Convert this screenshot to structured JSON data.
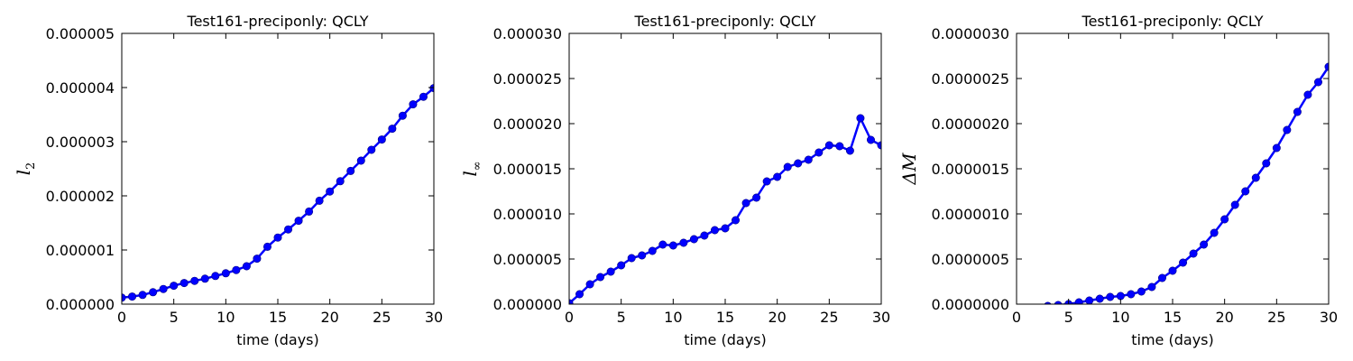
{
  "chart_data": [
    {
      "type": "line",
      "title": "Test161-preciponly: QCLY",
      "xlabel": "time (days)",
      "ylabel": "l",
      "ylabel_subscript": "2",
      "xlim": [
        0,
        30
      ],
      "ylim": [
        0,
        5e-06
      ],
      "xticks": [
        0,
        5,
        10,
        15,
        20,
        25,
        30
      ],
      "yticks": [
        0,
        1e-06,
        2e-06,
        3e-06,
        4e-06,
        5e-06
      ],
      "xtick_labels": [
        "0",
        "5",
        "10",
        "15",
        "20",
        "25",
        "30"
      ],
      "ytick_labels": [
        "0.000000",
        "0.000001",
        "0.000002",
        "0.000003",
        "0.000004",
        "0.000005"
      ],
      "grid": false,
      "color": "#0000ff",
      "series": [
        {
          "x": [
            0,
            1,
            2,
            3,
            4,
            5,
            6,
            7,
            8,
            9,
            10,
            11,
            12,
            13,
            14,
            15,
            16,
            17,
            18,
            19,
            20,
            21,
            22,
            23,
            24,
            25,
            26,
            27,
            28,
            29,
            30
          ],
          "values": [
            1.2e-07,
            1.4e-07,
            1.7e-07,
            2.2e-07,
            2.8e-07,
            3.4e-07,
            3.9e-07,
            4.3e-07,
            4.7e-07,
            5.2e-07,
            5.7e-07,
            6.3e-07,
            7e-07,
            8.4e-07,
            1.06e-06,
            1.23e-06,
            1.38e-06,
            1.54e-06,
            1.71e-06,
            1.91e-06,
            2.08e-06,
            2.27e-06,
            2.46e-06,
            2.65e-06,
            2.85e-06,
            3.04e-06,
            3.24e-06,
            3.48e-06,
            3.69e-06,
            3.83e-06,
            3.99e-06
          ]
        }
      ]
    },
    {
      "type": "line",
      "title": "Test161-preciponly: QCLY",
      "xlabel": "time (days)",
      "ylabel": "l",
      "ylabel_subscript": "∞",
      "xlim": [
        0,
        30
      ],
      "ylim": [
        0,
        3e-05
      ],
      "xticks": [
        0,
        5,
        10,
        15,
        20,
        25,
        30
      ],
      "yticks": [
        0,
        5e-06,
        1e-05,
        1.5e-05,
        2e-05,
        2.5e-05,
        3e-05
      ],
      "xtick_labels": [
        "0",
        "5",
        "10",
        "15",
        "20",
        "25",
        "30"
      ],
      "ytick_labels": [
        "0.000000",
        "0.000005",
        "0.000010",
        "0.000015",
        "0.000020",
        "0.000025",
        "0.000030"
      ],
      "grid": false,
      "color": "#0000ff",
      "series": [
        {
          "x": [
            0,
            1,
            2,
            3,
            4,
            5,
            6,
            7,
            8,
            9,
            10,
            11,
            12,
            13,
            14,
            15,
            16,
            17,
            18,
            19,
            20,
            21,
            22,
            23,
            24,
            25,
            26,
            27,
            28,
            29,
            30
          ],
          "values": [
            1e-07,
            1.1e-06,
            2.2e-06,
            3e-06,
            3.6e-06,
            4.3e-06,
            5.1e-06,
            5.4e-06,
            5.9e-06,
            6.6e-06,
            6.5e-06,
            6.8e-06,
            7.2e-06,
            7.6e-06,
            8.2e-06,
            8.4e-06,
            9.3e-06,
            1.12e-05,
            1.18e-05,
            1.36e-05,
            1.41e-05,
            1.52e-05,
            1.56e-05,
            1.6e-05,
            1.68e-05,
            1.76e-05,
            1.75e-05,
            1.7e-05,
            2.06e-05,
            1.82e-05,
            1.76e-05
          ]
        }
      ]
    },
    {
      "type": "line",
      "title": "Test161-preciponly: QCLY",
      "xlabel": "time (days)",
      "ylabel": "ΔM",
      "ylabel_subscript": "",
      "xlim": [
        0,
        30
      ],
      "ylim": [
        0,
        3e-06
      ],
      "xticks": [
        0,
        5,
        10,
        15,
        20,
        25,
        30
      ],
      "yticks": [
        0,
        5e-07,
        1e-06,
        1.5e-06,
        2e-06,
        2.5e-06,
        3e-06
      ],
      "xtick_labels": [
        "0",
        "5",
        "10",
        "15",
        "20",
        "25",
        "30"
      ],
      "ytick_labels": [
        "0.0000000",
        "0.0000005",
        "0.0000010",
        "0.0000015",
        "0.0000020",
        "0.0000025",
        "0.0000030"
      ],
      "grid": false,
      "color": "#0000ff",
      "series": [
        {
          "x": [
            3,
            4,
            5,
            6,
            7,
            8,
            9,
            10,
            11,
            12,
            13,
            14,
            15,
            16,
            17,
            18,
            19,
            20,
            21,
            22,
            23,
            24,
            25,
            26,
            27,
            28,
            29,
            30
          ],
          "values": [
            -2e-08,
            -1e-08,
            0.0,
            2e-08,
            4e-08,
            6e-08,
            8e-08,
            9e-08,
            1.1e-07,
            1.4e-07,
            1.9e-07,
            2.9e-07,
            3.7e-07,
            4.6e-07,
            5.6e-07,
            6.6e-07,
            7.9e-07,
            9.4e-07,
            1.1e-06,
            1.25e-06,
            1.4e-06,
            1.56e-06,
            1.73e-06,
            1.93e-06,
            2.13e-06,
            2.32e-06,
            2.46e-06,
            2.63e-06
          ]
        }
      ]
    }
  ]
}
